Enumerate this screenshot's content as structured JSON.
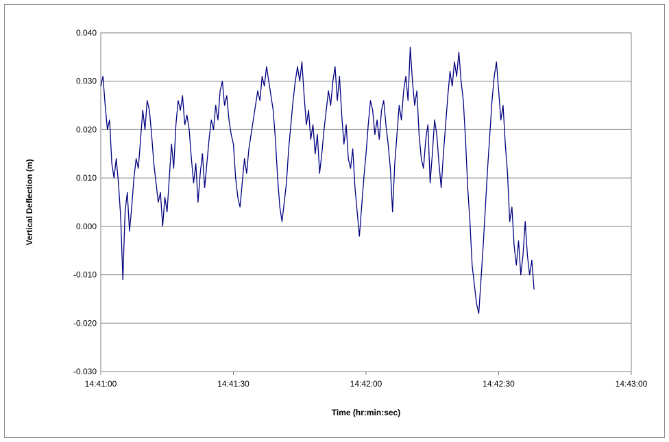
{
  "chart_data": {
    "type": "line",
    "title": "",
    "xlabel": "Time (hr:min:sec)",
    "ylabel": "Vertical Deflection (m)",
    "x_tick_labels": [
      "14:41:00",
      "14:41:30",
      "14:42:00",
      "14:42:30",
      "14:43:00"
    ],
    "y_tick_labels": [
      "0.040",
      "0.030",
      "0.020",
      "0.010",
      "0.000",
      "-0.010",
      "-0.020",
      "-0.030"
    ],
    "xlim": [
      "14:41:00",
      "14:43:00"
    ],
    "ylim": [
      -0.03,
      0.04
    ],
    "grid": "horizontal major gridlines",
    "legend": "none",
    "series": [
      {
        "color": "#000080",
        "points": [
          [
            "14:41:00",
            0.029
          ],
          [
            "14:41:00.5",
            0.031
          ],
          [
            "14:41:01",
            0.025
          ],
          [
            "14:41:01.5",
            0.02
          ],
          [
            "14:41:02",
            0.022
          ],
          [
            "14:41:02.5",
            0.013
          ],
          [
            "14:41:03",
            0.01
          ],
          [
            "14:41:03.5",
            0.014
          ],
          [
            "14:41:04",
            0.009
          ],
          [
            "14:41:04.5",
            0.002
          ],
          [
            "14:41:05",
            -0.011
          ],
          [
            "14:41:05.5",
            0.003
          ],
          [
            "14:41:06",
            0.007
          ],
          [
            "14:41:06.5",
            -0.001
          ],
          [
            "14:41:07",
            0.004
          ],
          [
            "14:41:07.5",
            0.01
          ],
          [
            "14:41:08",
            0.014
          ],
          [
            "14:41:08.5",
            0.012
          ],
          [
            "14:41:09",
            0.018
          ],
          [
            "14:41:09.5",
            0.024
          ],
          [
            "14:41:10",
            0.02
          ],
          [
            "14:41:10.5",
            0.026
          ],
          [
            "14:41:11",
            0.024
          ],
          [
            "14:41:11.5",
            0.019
          ],
          [
            "14:41:12",
            0.013
          ],
          [
            "14:41:12.5",
            0.009
          ],
          [
            "14:41:13",
            0.005
          ],
          [
            "14:41:13.5",
            0.007
          ],
          [
            "14:41:14",
            0.0
          ],
          [
            "14:41:14.5",
            0.006
          ],
          [
            "14:41:15",
            0.003
          ],
          [
            "14:41:15.5",
            0.01
          ],
          [
            "14:41:16",
            0.017
          ],
          [
            "14:41:16.5",
            0.012
          ],
          [
            "14:41:17",
            0.021
          ],
          [
            "14:41:17.5",
            0.026
          ],
          [
            "14:41:18",
            0.024
          ],
          [
            "14:41:18.5",
            0.027
          ],
          [
            "14:41:19",
            0.021
          ],
          [
            "14:41:19.5",
            0.023
          ],
          [
            "14:41:20",
            0.02
          ],
          [
            "14:41:20.5",
            0.014
          ],
          [
            "14:41:21",
            0.009
          ],
          [
            "14:41:21.5",
            0.013
          ],
          [
            "14:41:22",
            0.005
          ],
          [
            "14:41:22.5",
            0.011
          ],
          [
            "14:41:23",
            0.015
          ],
          [
            "14:41:23.5",
            0.008
          ],
          [
            "14:41:24",
            0.013
          ],
          [
            "14:41:24.5",
            0.018
          ],
          [
            "14:41:25",
            0.022
          ],
          [
            "14:41:25.5",
            0.02
          ],
          [
            "14:41:26",
            0.025
          ],
          [
            "14:41:26.5",
            0.022
          ],
          [
            "14:41:27",
            0.028
          ],
          [
            "14:41:27.5",
            0.03
          ],
          [
            "14:41:28",
            0.025
          ],
          [
            "14:41:28.5",
            0.027
          ],
          [
            "14:41:29",
            0.022
          ],
          [
            "14:41:29.5",
            0.019
          ],
          [
            "14:41:30",
            0.017
          ],
          [
            "14:41:30.5",
            0.01
          ],
          [
            "14:41:31",
            0.006
          ],
          [
            "14:41:31.5",
            0.004
          ],
          [
            "14:41:32",
            0.009
          ],
          [
            "14:41:32.5",
            0.014
          ],
          [
            "14:41:33",
            0.011
          ],
          [
            "14:41:33.5",
            0.016
          ],
          [
            "14:41:34",
            0.019
          ],
          [
            "14:41:34.5",
            0.022
          ],
          [
            "14:41:35",
            0.025
          ],
          [
            "14:41:35.5",
            0.028
          ],
          [
            "14:41:36",
            0.026
          ],
          [
            "14:41:36.5",
            0.031
          ],
          [
            "14:41:37",
            0.029
          ],
          [
            "14:41:37.5",
            0.033
          ],
          [
            "14:41:38",
            0.03
          ],
          [
            "14:41:38.5",
            0.027
          ],
          [
            "14:41:39",
            0.024
          ],
          [
            "14:41:39.5",
            0.018
          ],
          [
            "14:41:40",
            0.01
          ],
          [
            "14:41:40.5",
            0.004
          ],
          [
            "14:41:41",
            0.001
          ],
          [
            "14:41:41.5",
            0.005
          ],
          [
            "14:41:42",
            0.009
          ],
          [
            "14:41:42.5",
            0.016
          ],
          [
            "14:41:43",
            0.021
          ],
          [
            "14:41:43.5",
            0.026
          ],
          [
            "14:41:44",
            0.03
          ],
          [
            "14:41:44.5",
            0.033
          ],
          [
            "14:41:45",
            0.03
          ],
          [
            "14:41:45.5",
            0.034
          ],
          [
            "14:41:46",
            0.027
          ],
          [
            "14:41:46.5",
            0.021
          ],
          [
            "14:41:47",
            0.024
          ],
          [
            "14:41:47.5",
            0.018
          ],
          [
            "14:41:48",
            0.021
          ],
          [
            "14:41:48.5",
            0.015
          ],
          [
            "14:41:49",
            0.019
          ],
          [
            "14:41:49.5",
            0.011
          ],
          [
            "14:41:50",
            0.015
          ],
          [
            "14:41:50.5",
            0.02
          ],
          [
            "14:41:51",
            0.024
          ],
          [
            "14:41:51.5",
            0.028
          ],
          [
            "14:41:52",
            0.025
          ],
          [
            "14:41:52.5",
            0.03
          ],
          [
            "14:41:53",
            0.033
          ],
          [
            "14:41:53.5",
            0.026
          ],
          [
            "14:41:54",
            0.031
          ],
          [
            "14:41:54.5",
            0.023
          ],
          [
            "14:41:55",
            0.017
          ],
          [
            "14:41:55.5",
            0.021
          ],
          [
            "14:41:56",
            0.014
          ],
          [
            "14:41:56.5",
            0.012
          ],
          [
            "14:41:57",
            0.016
          ],
          [
            "14:41:57.5",
            0.008
          ],
          [
            "14:41:58",
            0.003
          ],
          [
            "14:41:58.5",
            -0.002
          ],
          [
            "14:41:59",
            0.004
          ],
          [
            "14:41:59.5",
            0.01
          ],
          [
            "14:42:00",
            0.015
          ],
          [
            "14:42:00.5",
            0.021
          ],
          [
            "14:42:01",
            0.026
          ],
          [
            "14:42:01.5",
            0.024
          ],
          [
            "14:42:02",
            0.019
          ],
          [
            "14:42:02.5",
            0.022
          ],
          [
            "14:42:03",
            0.018
          ],
          [
            "14:42:03.5",
            0.024
          ],
          [
            "14:42:04",
            0.026
          ],
          [
            "14:42:04.5",
            0.021
          ],
          [
            "14:42:05",
            0.017
          ],
          [
            "14:42:05.5",
            0.012
          ],
          [
            "14:42:06",
            0.003
          ],
          [
            "14:42:06.5",
            0.013
          ],
          [
            "14:42:07",
            0.019
          ],
          [
            "14:42:07.5",
            0.025
          ],
          [
            "14:42:08",
            0.022
          ],
          [
            "14:42:08.5",
            0.028
          ],
          [
            "14:42:09",
            0.031
          ],
          [
            "14:42:09.5",
            0.026
          ],
          [
            "14:42:10",
            0.037
          ],
          [
            "14:42:10.5",
            0.03
          ],
          [
            "14:42:11",
            0.025
          ],
          [
            "14:42:11.5",
            0.028
          ],
          [
            "14:42:12",
            0.019
          ],
          [
            "14:42:12.5",
            0.014
          ],
          [
            "14:42:13",
            0.012
          ],
          [
            "14:42:13.5",
            0.018
          ],
          [
            "14:42:14",
            0.021
          ],
          [
            "14:42:14.5",
            0.009
          ],
          [
            "14:42:15",
            0.015
          ],
          [
            "14:42:15.5",
            0.022
          ],
          [
            "14:42:16",
            0.019
          ],
          [
            "14:42:16.5",
            0.013
          ],
          [
            "14:42:17",
            0.008
          ],
          [
            "14:42:17.5",
            0.015
          ],
          [
            "14:42:18",
            0.021
          ],
          [
            "14:42:18.5",
            0.027
          ],
          [
            "14:42:19",
            0.032
          ],
          [
            "14:42:19.5",
            0.029
          ],
          [
            "14:42:20",
            0.034
          ],
          [
            "14:42:20.5",
            0.031
          ],
          [
            "14:42:21",
            0.036
          ],
          [
            "14:42:21.5",
            0.03
          ],
          [
            "14:42:22",
            0.026
          ],
          [
            "14:42:22.5",
            0.018
          ],
          [
            "14:42:23",
            0.008
          ],
          [
            "14:42:23.5",
            0.001
          ],
          [
            "14:42:24",
            -0.008
          ],
          [
            "14:42:24.5",
            -0.012
          ],
          [
            "14:42:25",
            -0.016
          ],
          [
            "14:42:25.5",
            -0.018
          ],
          [
            "14:42:26",
            -0.011
          ],
          [
            "14:42:26.5",
            -0.004
          ],
          [
            "14:42:27",
            0.004
          ],
          [
            "14:42:27.5",
            0.012
          ],
          [
            "14:42:28",
            0.019
          ],
          [
            "14:42:28.5",
            0.026
          ],
          [
            "14:42:29",
            0.031
          ],
          [
            "14:42:29.5",
            0.034
          ],
          [
            "14:42:30",
            0.028
          ],
          [
            "14:42:30.5",
            0.022
          ],
          [
            "14:42:31",
            0.025
          ],
          [
            "14:42:31.5",
            0.017
          ],
          [
            "14:42:32",
            0.011
          ],
          [
            "14:42:32.5",
            0.001
          ],
          [
            "14:42:33",
            0.004
          ],
          [
            "14:42:33.5",
            -0.004
          ],
          [
            "14:42:34",
            -0.008
          ],
          [
            "14:42:34.5",
            -0.003
          ],
          [
            "14:42:35",
            -0.01
          ],
          [
            "14:42:35.5",
            -0.006
          ],
          [
            "14:42:36",
            0.001
          ],
          [
            "14:42:36.5",
            -0.006
          ],
          [
            "14:42:37",
            -0.01
          ],
          [
            "14:42:37.5",
            -0.007
          ],
          [
            "14:42:38",
            -0.013
          ]
        ]
      }
    ]
  }
}
